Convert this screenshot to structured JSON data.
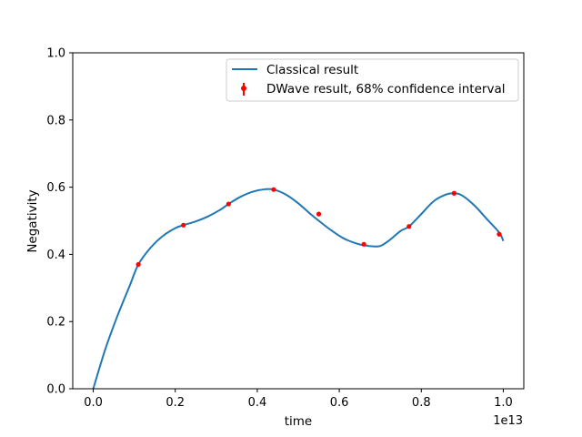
{
  "chart_data": {
    "type": "line",
    "title": "",
    "xlabel": "time",
    "ylabel": "Negativity",
    "x_offset_label": "1e13",
    "xlim": [
      -0.05,
      1.05
    ],
    "ylim": [
      0.0,
      1.0
    ],
    "x_ticks": [
      0.0,
      0.2,
      0.4,
      0.6,
      0.8,
      1.0
    ],
    "x_tick_labels": [
      "0.0",
      "0.2",
      "0.4",
      "0.6",
      "0.8",
      "1.0"
    ],
    "y_ticks": [
      0.0,
      0.2,
      0.4,
      0.6,
      0.8,
      1.0
    ],
    "y_tick_labels": [
      "0.0",
      "0.2",
      "0.4",
      "0.6",
      "0.8",
      "1.0"
    ],
    "grid": false,
    "legend_position": "top-right",
    "series": [
      {
        "name": "Classical result",
        "kind": "line",
        "color": "#1f77b4",
        "x": [
          0.0,
          0.03,
          0.06,
          0.09,
          0.11,
          0.14,
          0.17,
          0.2,
          0.22,
          0.25,
          0.28,
          0.31,
          0.33,
          0.36,
          0.39,
          0.42,
          0.44,
          0.47,
          0.5,
          0.53,
          0.55,
          0.58,
          0.61,
          0.64,
          0.66,
          0.68,
          0.7,
          0.72,
          0.75,
          0.77,
          0.8,
          0.83,
          0.86,
          0.88,
          0.9,
          0.93,
          0.96,
          0.99,
          1.0
        ],
        "y": [
          0.0,
          0.12,
          0.22,
          0.31,
          0.37,
          0.42,
          0.455,
          0.478,
          0.487,
          0.498,
          0.513,
          0.533,
          0.55,
          0.572,
          0.587,
          0.594,
          0.593,
          0.578,
          0.552,
          0.52,
          0.5,
          0.472,
          0.448,
          0.433,
          0.427,
          0.424,
          0.425,
          0.44,
          0.47,
          0.483,
          0.52,
          0.558,
          0.578,
          0.582,
          0.575,
          0.545,
          0.505,
          0.465,
          0.44
        ]
      },
      {
        "name": "DWave result, 68% confidence interval",
        "kind": "errorbar",
        "color": "#ff0000",
        "x": [
          0.11,
          0.22,
          0.33,
          0.44,
          0.55,
          0.66,
          0.77,
          0.88,
          0.99
        ],
        "y": [
          0.37,
          0.487,
          0.55,
          0.593,
          0.52,
          0.43,
          0.483,
          0.582,
          0.46
        ],
        "yerr": [
          0.004,
          0.004,
          0.004,
          0.004,
          0.004,
          0.004,
          0.004,
          0.004,
          0.004
        ]
      }
    ]
  }
}
